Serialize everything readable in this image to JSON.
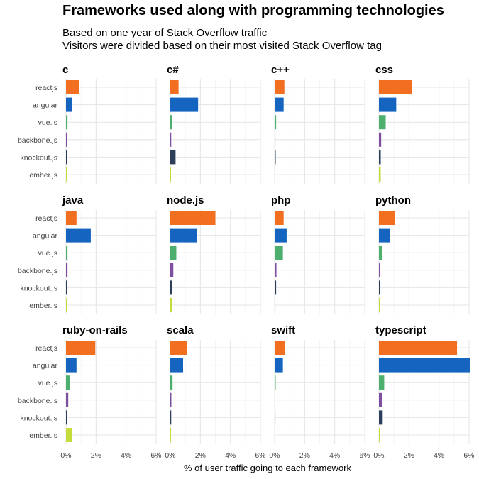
{
  "title": "Frameworks used along with programming technologies",
  "subtitle_lines": [
    "Based on one year of Stack Overflow traffic",
    "Visitors were divided based on their most visited Stack Overflow tag"
  ],
  "chart_data": {
    "type": "bar",
    "orientation": "horizontal",
    "layout": "facet-grid 4 columns x 3 rows",
    "xlabel": "% of user traffic going to each framework",
    "xlim": [
      0,
      6
    ],
    "xticks": [
      0,
      2,
      4,
      6
    ],
    "xtick_labels": [
      "0%",
      "2%",
      "4%",
      "6%"
    ],
    "grid": true,
    "legend": "none",
    "categories": [
      "reactjs",
      "angular",
      "vue.js",
      "backbone.js",
      "knockout.js",
      "ember.js"
    ],
    "colors": {
      "reactjs": "#f26f21",
      "angular": "#1565c0",
      "vue.js": "#4caf6e",
      "backbone.js": "#7e4fa0",
      "knockout.js": "#2c3e5a",
      "ember.js": "#c5dc3c"
    },
    "facets": [
      {
        "name": "c",
        "values": [
          0.85,
          0.4,
          0.1,
          0.05,
          0.07,
          0.04
        ]
      },
      {
        "name": "c#",
        "values": [
          0.55,
          1.85,
          0.1,
          0.06,
          0.35,
          0.04
        ]
      },
      {
        "name": "c++",
        "values": [
          0.65,
          0.6,
          0.1,
          0.05,
          0.07,
          0.04
        ]
      },
      {
        "name": "css",
        "values": [
          2.2,
          1.15,
          0.45,
          0.15,
          0.12,
          0.12
        ]
      },
      {
        "name": "java",
        "values": [
          0.7,
          1.65,
          0.1,
          0.1,
          0.07,
          0.06
        ]
      },
      {
        "name": "node.js",
        "values": [
          3.0,
          1.75,
          0.4,
          0.2,
          0.1,
          0.12
        ]
      },
      {
        "name": "php",
        "values": [
          0.6,
          0.8,
          0.55,
          0.12,
          0.1,
          0.05
        ]
      },
      {
        "name": "python",
        "values": [
          1.05,
          0.75,
          0.2,
          0.08,
          0.07,
          0.06
        ]
      },
      {
        "name": "ruby-on-rails",
        "values": [
          1.95,
          0.7,
          0.25,
          0.15,
          0.08,
          0.4
        ]
      },
      {
        "name": "scala",
        "values": [
          1.1,
          0.85,
          0.15,
          0.07,
          0.06,
          0.05
        ]
      },
      {
        "name": "swift",
        "values": [
          0.7,
          0.55,
          0.07,
          0.04,
          0.05,
          0.04
        ]
      },
      {
        "name": "typescript",
        "values": [
          5.2,
          6.05,
          0.35,
          0.2,
          0.25,
          0.05
        ]
      }
    ]
  }
}
